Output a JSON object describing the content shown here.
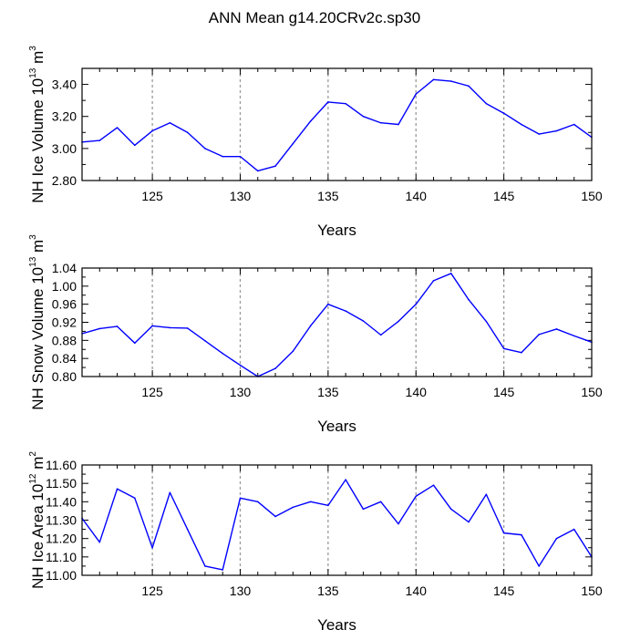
{
  "title": "ANN Mean g14.20CRv2c.sp30",
  "line_color": "#0000ff",
  "chart_data": [
    {
      "type": "line",
      "name": "ice-volume",
      "ylabel": {
        "text": "NH Ice Volume 10",
        "exp": "13",
        "unit": " m",
        "unit_exp": "3"
      },
      "xlabel": "Years",
      "xlim": [
        121,
        150
      ],
      "ylim": [
        2.8,
        3.5
      ],
      "xticks": [
        125,
        130,
        135,
        140,
        145,
        150
      ],
      "yticks": [
        2.8,
        3.0,
        3.2,
        3.4
      ],
      "ytick_labels": [
        "2.80",
        "3.00",
        "3.20",
        "3.40"
      ],
      "x": [
        121,
        122,
        123,
        124,
        125,
        126,
        127,
        128,
        129,
        130,
        131,
        132,
        133,
        134,
        135,
        136,
        137,
        138,
        139,
        140,
        141,
        142,
        143,
        144,
        145,
        146,
        147,
        148,
        149,
        150
      ],
      "values": [
        3.04,
        3.05,
        3.13,
        3.02,
        3.11,
        3.16,
        3.1,
        3.0,
        2.95,
        2.95,
        2.86,
        2.89,
        3.03,
        3.17,
        3.29,
        3.28,
        3.2,
        3.16,
        3.15,
        3.34,
        3.43,
        3.42,
        3.39,
        3.28,
        3.22,
        3.15,
        3.09,
        3.11,
        3.15,
        3.07
      ]
    },
    {
      "type": "line",
      "name": "snow-volume",
      "ylabel": {
        "text": "NH Snow Volume 10",
        "exp": "13",
        "unit": " m",
        "unit_exp": "3"
      },
      "xlabel": "Years",
      "xlim": [
        121,
        150
      ],
      "ylim": [
        0.8,
        1.04
      ],
      "xticks": [
        125,
        130,
        135,
        140,
        145,
        150
      ],
      "yticks": [
        0.8,
        0.84,
        0.88,
        0.92,
        0.96,
        1.0,
        1.04
      ],
      "ytick_labels": [
        "0.80",
        "0.84",
        "0.88",
        "0.92",
        "0.96",
        "1.00",
        "1.04"
      ],
      "x": [
        121,
        122,
        123,
        124,
        125,
        126,
        127,
        128,
        129,
        130,
        131,
        132,
        133,
        134,
        135,
        136,
        137,
        138,
        139,
        140,
        141,
        142,
        143,
        144,
        145,
        146,
        147,
        148,
        149,
        150
      ],
      "values": [
        0.895,
        0.906,
        0.911,
        0.874,
        0.912,
        0.908,
        0.907,
        0.879,
        0.851,
        0.825,
        0.8,
        0.818,
        0.856,
        0.912,
        0.96,
        0.945,
        0.923,
        0.892,
        0.922,
        0.96,
        1.012,
        1.028,
        0.97,
        0.922,
        0.862,
        0.853,
        0.893,
        0.905,
        0.89,
        0.876
      ]
    },
    {
      "type": "line",
      "name": "ice-area",
      "ylabel": {
        "text": "NH Ice Area 10",
        "exp": "12",
        "unit": " m",
        "unit_exp": "2"
      },
      "xlabel": "Years",
      "xlim": [
        121,
        150
      ],
      "ylim": [
        11.0,
        11.6
      ],
      "xticks": [
        125,
        130,
        135,
        140,
        145,
        150
      ],
      "yticks": [
        11.0,
        11.1,
        11.2,
        11.3,
        11.4,
        11.5,
        11.6
      ],
      "ytick_labels": [
        "11.00",
        "11.10",
        "11.20",
        "11.30",
        "11.40",
        "11.50",
        "11.60"
      ],
      "x": [
        121,
        122,
        123,
        124,
        125,
        126,
        127,
        128,
        129,
        130,
        131,
        132,
        133,
        134,
        135,
        136,
        137,
        138,
        139,
        140,
        141,
        142,
        143,
        144,
        145,
        146,
        147,
        148,
        149,
        150
      ],
      "values": [
        11.31,
        11.18,
        11.47,
        11.42,
        11.15,
        11.45,
        11.25,
        11.05,
        11.03,
        11.42,
        11.4,
        11.32,
        11.37,
        11.4,
        11.38,
        11.52,
        11.36,
        11.4,
        11.28,
        11.43,
        11.49,
        11.36,
        11.29,
        11.44,
        11.23,
        11.22,
        11.05,
        11.2,
        11.25,
        11.1
      ]
    }
  ]
}
